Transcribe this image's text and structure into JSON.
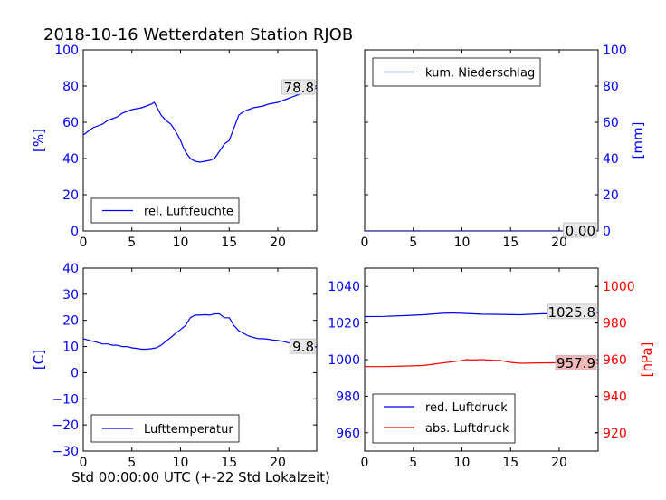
{
  "title": "2018-10-16 Wetterdaten Station RJOB",
  "xlabel": "Std 00:00:00 UTC (+-22 Std Lokalzeit)",
  "colors": {
    "blue": "#0000ff",
    "red": "#ff0000"
  },
  "chart_data": [
    {
      "id": "humidity",
      "type": "line",
      "xlim": [
        0,
        24
      ],
      "ylim": [
        0,
        100
      ],
      "xticks": [
        0,
        5,
        10,
        15,
        20
      ],
      "yticks": [
        0,
        20,
        40,
        60,
        80,
        100
      ],
      "ylabel": "[%]",
      "legend": "bottom-left",
      "current_label": "78.8",
      "series": [
        {
          "name": "rel. Luftfeuchte",
          "color": "#0000ff",
          "x": [
            0,
            0.5,
            1,
            1.5,
            2,
            2.5,
            3,
            3.5,
            4,
            4.5,
            5,
            5.5,
            6,
            6.5,
            7,
            7.3,
            7.6,
            8,
            8.5,
            9,
            9.5,
            10,
            10.3,
            10.6,
            11,
            11.5,
            12,
            12.5,
            13,
            13.5,
            14,
            14.5,
            15,
            15.5,
            16,
            16.5,
            17,
            17.5,
            18,
            18.5,
            19,
            19.5,
            20,
            20.5,
            21,
            21.5,
            22,
            22.5,
            23,
            23.5,
            24
          ],
          "y": [
            53,
            55,
            57,
            58,
            59,
            61,
            62,
            63,
            65,
            66,
            67,
            67.5,
            68,
            69,
            70,
            71,
            68,
            64,
            61,
            59,
            55,
            50,
            46,
            43,
            40,
            38.5,
            38,
            38.5,
            39,
            40,
            44,
            48,
            50,
            57,
            64,
            66,
            67,
            68,
            68.5,
            69,
            70,
            70.5,
            71,
            72,
            73,
            74,
            75,
            76,
            77,
            78,
            79
          ]
        }
      ]
    },
    {
      "id": "precipitation",
      "type": "line",
      "xlim": [
        0,
        24
      ],
      "ylim": [
        0,
        100
      ],
      "xticks": [
        0,
        5,
        10,
        15,
        20
      ],
      "yticks": [
        0,
        20,
        40,
        60,
        80,
        100
      ],
      "ylabel": "[mm]",
      "legend": "top-left",
      "current_label": "0.00",
      "series": [
        {
          "name": "kum. Niederschlag",
          "color": "#0000ff",
          "x": [
            0,
            24
          ],
          "y": [
            0,
            0
          ]
        }
      ]
    },
    {
      "id": "temperature",
      "type": "line",
      "xlim": [
        0,
        24
      ],
      "ylim": [
        -30,
        40
      ],
      "xticks": [
        0,
        5,
        10,
        15,
        20
      ],
      "yticks": [
        -30,
        -20,
        -10,
        0,
        10,
        20,
        30,
        40
      ],
      "ylabel": "[C]",
      "legend": "bottom-left",
      "current_label": "9.8",
      "series": [
        {
          "name": "Lufttemperatur",
          "color": "#0000ff",
          "x": [
            0,
            0.5,
            1,
            1.5,
            2,
            2.5,
            3,
            3.5,
            4,
            4.5,
            5,
            5.5,
            6,
            6.5,
            7,
            7.5,
            8,
            8.5,
            9,
            9.5,
            10,
            10.5,
            11,
            11.5,
            12,
            12.5,
            13,
            13.5,
            14,
            14.5,
            15,
            15.5,
            16,
            16.5,
            17,
            17.5,
            18,
            18.5,
            19,
            19.5,
            20,
            20.5,
            21,
            21.5,
            22,
            22.5,
            23,
            23.5,
            24
          ],
          "y": [
            13,
            12.5,
            12,
            11.5,
            11,
            11,
            10.5,
            10.5,
            10,
            10,
            9.5,
            9.3,
            9,
            9,
            9.2,
            9.5,
            10.5,
            12,
            13.5,
            15,
            16.5,
            18,
            21,
            22,
            22,
            22.2,
            22,
            22.5,
            22.5,
            21,
            21,
            18,
            16,
            15,
            14,
            13.5,
            13,
            13,
            12.8,
            12.5,
            12.3,
            12,
            11.5,
            11,
            10.5,
            10.3,
            10,
            9.9,
            9.8
          ]
        }
      ]
    },
    {
      "id": "pressure",
      "type": "line",
      "xlim": [
        0,
        24
      ],
      "ylim": [
        950,
        1050
      ],
      "ylim_right": [
        910,
        1010
      ],
      "xticks": [
        0,
        5,
        10,
        15,
        20
      ],
      "yticks": [
        960,
        980,
        1000,
        1020,
        1040
      ],
      "yticks_right": [
        920,
        940,
        960,
        980,
        1000
      ],
      "ylabel_right": "[hPa]",
      "legend": "bottom-left",
      "current_label": "1025.8",
      "current_label_right": "957.9",
      "series": [
        {
          "name": "red. Luftdruck",
          "color": "#0000ff",
          "axis": "left",
          "x": [
            0,
            2,
            4,
            6,
            8,
            9,
            10,
            12,
            14,
            16,
            18,
            20,
            22,
            24
          ],
          "y": [
            1023.5,
            1023.6,
            1024,
            1024.5,
            1025.3,
            1025.5,
            1025.3,
            1024.8,
            1024.7,
            1024.5,
            1025,
            1025.3,
            1025.6,
            1025.8
          ]
        },
        {
          "name": "abs. Luftdruck",
          "color": "#ff0000",
          "axis": "right",
          "x": [
            0,
            2,
            4,
            6,
            7,
            8,
            9,
            10,
            10.5,
            11,
            12,
            13,
            14,
            15,
            16,
            18,
            20,
            22,
            24
          ],
          "y": [
            956.2,
            956.2,
            956.5,
            956.8,
            957.5,
            958.2,
            958.8,
            959.5,
            960,
            959.8,
            960,
            959.7,
            959.5,
            958.5,
            958,
            958.2,
            958.3,
            958,
            957.9
          ]
        }
      ]
    }
  ]
}
